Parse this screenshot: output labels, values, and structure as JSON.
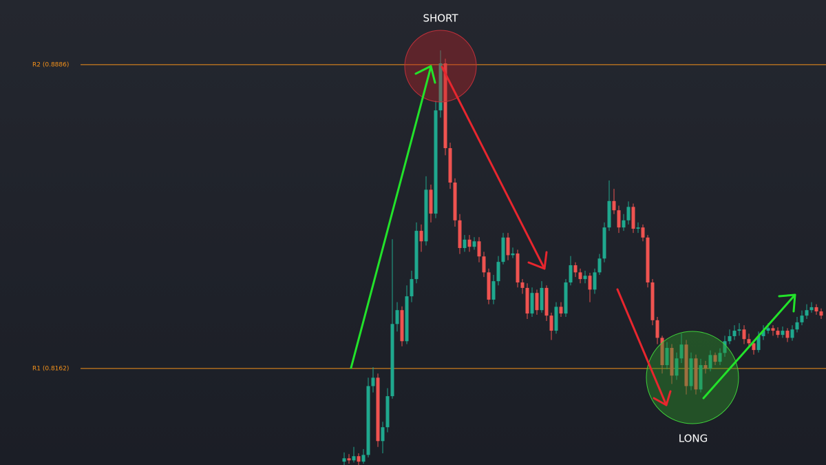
{
  "chart_data": {
    "type": "candlestick",
    "ylim": [
      0.7932,
      0.904
    ],
    "colors": {
      "up": "#1fa88e",
      "down": "#ef5350",
      "level": "#f7931a"
    },
    "levels": [
      {
        "value": 0.8886,
        "label": "R2 (0.8886)"
      },
      {
        "value": 0.8162,
        "label": "R1 (0.8162)"
      }
    ],
    "annotations": [
      "SHORT",
      "LONG"
    ],
    "open": [
      0.794,
      0.7948,
      0.7943,
      0.7953,
      0.794,
      0.7956,
      0.812,
      0.814,
      0.7989,
      0.8022,
      0.8096,
      0.8268,
      0.8301,
      0.8227,
      0.8334,
      0.8375,
      0.849,
      0.8465,
      0.8588,
      0.8531,
      0.8777,
      0.8889,
      0.8687,
      0.8605,
      0.8515,
      0.8449,
      0.8469,
      0.8452,
      0.8465,
      0.8429,
      0.8391,
      0.8326,
      0.837,
      0.8416,
      0.8474,
      0.8432,
      0.8436,
      0.8367,
      0.8354,
      0.8293,
      0.8342,
      0.8301,
      0.8354,
      0.8288,
      0.8252,
      0.8309,
      0.8293,
      0.8367,
      0.8408,
      0.8391,
      0.8375,
      0.8383,
      0.835,
      0.8391,
      0.8424,
      0.8498,
      0.8561,
      0.8539,
      0.8498,
      0.8515,
      0.8547,
      0.8495,
      0.8498,
      0.8474,
      0.8367,
      0.8277,
      0.8235,
      0.817,
      0.8211,
      0.8145,
      0.8186,
      0.8219,
      0.812,
      0.8186,
      0.8112,
      0.817,
      0.8162,
      0.8194,
      0.8178,
      0.8199,
      0.8227,
      0.8239,
      0.8252,
      0.8255,
      0.8232,
      0.8222,
      0.8206,
      0.8239,
      0.8252,
      0.8258,
      0.8252,
      0.8242,
      0.8252,
      0.8235,
      0.8255,
      0.8272,
      0.8288,
      0.8301,
      0.8308,
      0.8298
    ],
    "close": [
      0.7948,
      0.7943,
      0.7953,
      0.794,
      0.7956,
      0.812,
      0.814,
      0.7989,
      0.8022,
      0.8096,
      0.8268,
      0.8301,
      0.8227,
      0.8334,
      0.8375,
      0.849,
      0.8465,
      0.8588,
      0.8531,
      0.8777,
      0.8889,
      0.8687,
      0.8605,
      0.8515,
      0.8449,
      0.8469,
      0.8452,
      0.8465,
      0.8429,
      0.8391,
      0.8326,
      0.837,
      0.8416,
      0.8474,
      0.8432,
      0.8436,
      0.8367,
      0.8354,
      0.8293,
      0.8342,
      0.8301,
      0.8354,
      0.8288,
      0.8252,
      0.8309,
      0.8293,
      0.8367,
      0.8408,
      0.8391,
      0.8375,
      0.8383,
      0.835,
      0.8391,
      0.8424,
      0.8498,
      0.8561,
      0.8539,
      0.8498,
      0.8515,
      0.8547,
      0.8495,
      0.8498,
      0.8474,
      0.8367,
      0.8277,
      0.8235,
      0.817,
      0.8211,
      0.8145,
      0.8186,
      0.8219,
      0.812,
      0.8186,
      0.8112,
      0.817,
      0.8162,
      0.8194,
      0.8178,
      0.8199,
      0.8227,
      0.8239,
      0.8252,
      0.8255,
      0.8232,
      0.8222,
      0.8206,
      0.8239,
      0.8252,
      0.8258,
      0.8252,
      0.8242,
      0.8252,
      0.8235,
      0.8255,
      0.8272,
      0.8288,
      0.8301,
      0.8308,
      0.8298,
      0.8288
    ],
    "high": [
      0.7962,
      0.7958,
      0.7975,
      0.796,
      0.797,
      0.814,
      0.8165,
      0.815,
      0.8035,
      0.8115,
      0.847,
      0.832,
      0.831,
      0.836,
      0.8395,
      0.851,
      0.8505,
      0.862,
      0.86,
      0.88,
      0.892,
      0.89,
      0.87,
      0.8615,
      0.853,
      0.848,
      0.848,
      0.8475,
      0.8475,
      0.844,
      0.84,
      0.8385,
      0.843,
      0.8485,
      0.8485,
      0.845,
      0.8445,
      0.8375,
      0.8365,
      0.8355,
      0.835,
      0.837,
      0.836,
      0.8295,
      0.832,
      0.832,
      0.8375,
      0.843,
      0.8415,
      0.84,
      0.8395,
      0.839,
      0.84,
      0.8435,
      0.851,
      0.861,
      0.859,
      0.855,
      0.853,
      0.856,
      0.8555,
      0.851,
      0.8505,
      0.848,
      0.8375,
      0.8285,
      0.824,
      0.8225,
      0.822,
      0.82,
      0.8245,
      0.823,
      0.82,
      0.8195,
      0.8185,
      0.818,
      0.8205,
      0.82,
      0.821,
      0.824,
      0.8255,
      0.8265,
      0.827,
      0.8265,
      0.8245,
      0.823,
      0.825,
      0.8265,
      0.827,
      0.8265,
      0.826,
      0.8262,
      0.8258,
      0.8265,
      0.8285,
      0.83,
      0.8315,
      0.832,
      0.8315,
      0.8305
    ],
    "low": [
      0.7932,
      0.7935,
      0.7938,
      0.7932,
      0.7935,
      0.795,
      0.8105,
      0.7975,
      0.796,
      0.801,
      0.809,
      0.825,
      0.8215,
      0.822,
      0.832,
      0.8365,
      0.844,
      0.8455,
      0.851,
      0.852,
      0.876,
      0.867,
      0.859,
      0.85,
      0.8435,
      0.844,
      0.844,
      0.8445,
      0.8415,
      0.838,
      0.8315,
      0.8315,
      0.836,
      0.841,
      0.842,
      0.8425,
      0.8355,
      0.834,
      0.828,
      0.8285,
      0.829,
      0.8295,
      0.8275,
      0.823,
      0.8245,
      0.8285,
      0.8285,
      0.836,
      0.838,
      0.8365,
      0.8365,
      0.832,
      0.834,
      0.8385,
      0.8415,
      0.849,
      0.853,
      0.8485,
      0.849,
      0.8505,
      0.8485,
      0.8485,
      0.8465,
      0.8355,
      0.8265,
      0.822,
      0.815,
      0.816,
      0.8125,
      0.8135,
      0.8175,
      0.81,
      0.811,
      0.81,
      0.8105,
      0.815,
      0.8155,
      0.817,
      0.817,
      0.819,
      0.822,
      0.823,
      0.824,
      0.822,
      0.821,
      0.8195,
      0.82,
      0.823,
      0.8245,
      0.824,
      0.8235,
      0.8235,
      0.8225,
      0.8228,
      0.8248,
      0.8265,
      0.828,
      0.8295,
      0.829,
      0.828
    ]
  }
}
